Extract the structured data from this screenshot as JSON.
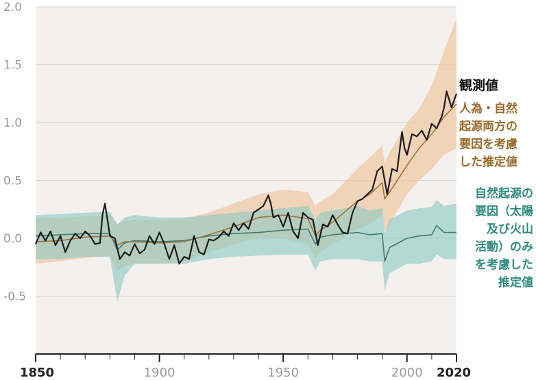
{
  "chart_data": {
    "type": "line",
    "xlim": [
      1850,
      2020
    ],
    "ylim": [
      -1.0,
      2.0
    ],
    "y_ticks": [
      "2.0",
      "1.5",
      "1.0",
      "0.5",
      "0.0",
      "-0.5"
    ],
    "x_ticks": [
      "1850",
      "1900",
      "1950",
      "2000",
      "2020"
    ],
    "grid": true,
    "series": [
      {
        "name": "観測値",
        "color": "#1a1a1a",
        "x": [
          1850,
          1852,
          1854,
          1856,
          1858,
          1860,
          1862,
          1864,
          1866,
          1868,
          1870,
          1872,
          1874,
          1876,
          1877,
          1878,
          1880,
          1882,
          1884,
          1886,
          1888,
          1890,
          1892,
          1894,
          1896,
          1898,
          1900,
          1902,
          1904,
          1906,
          1908,
          1910,
          1912,
          1914,
          1916,
          1918,
          1920,
          1922,
          1924,
          1926,
          1928,
          1930,
          1932,
          1934,
          1936,
          1938,
          1940,
          1942,
          1944,
          1945,
          1946,
          1948,
          1950,
          1952,
          1954,
          1956,
          1958,
          1960,
          1962,
          1964,
          1966,
          1968,
          1970,
          1972,
          1974,
          1976,
          1978,
          1980,
          1982,
          1984,
          1986,
          1988,
          1990,
          1992,
          1994,
          1996,
          1998,
          1999,
          2000,
          2002,
          2004,
          2006,
          2008,
          2010,
          2012,
          2014,
          2015,
          2016,
          2018,
          2020
        ],
        "values": [
          -0.05,
          0.05,
          -0.02,
          0.06,
          -0.06,
          0.02,
          -0.12,
          -0.02,
          0.04,
          0.0,
          0.06,
          0.02,
          -0.05,
          -0.04,
          0.2,
          0.3,
          0.02,
          0.0,
          -0.18,
          -0.12,
          -0.15,
          -0.05,
          -0.13,
          -0.1,
          0.02,
          -0.05,
          0.05,
          -0.05,
          -0.18,
          -0.06,
          -0.22,
          -0.16,
          -0.18,
          0.02,
          -0.12,
          -0.14,
          -0.01,
          -0.02,
          0.01,
          0.06,
          0.02,
          0.13,
          0.07,
          0.13,
          0.08,
          0.22,
          0.25,
          0.28,
          0.37,
          0.3,
          0.18,
          0.2,
          0.1,
          0.22,
          0.06,
          0.0,
          0.22,
          0.18,
          0.16,
          -0.06,
          0.12,
          0.1,
          0.2,
          0.12,
          0.05,
          0.04,
          0.22,
          0.32,
          0.34,
          0.38,
          0.42,
          0.58,
          0.62,
          0.38,
          0.6,
          0.58,
          0.92,
          0.78,
          0.72,
          0.9,
          0.88,
          0.93,
          0.85,
          0.99,
          0.95,
          1.05,
          1.13,
          1.27,
          1.13,
          1.25
        ]
      },
      {
        "name": "人為・自然起源両方の要因を考慮した推定値",
        "color": "#a0742f",
        "x": [
          1850,
          1860,
          1870,
          1880,
          1883,
          1886,
          1890,
          1900,
          1910,
          1920,
          1930,
          1940,
          1950,
          1960,
          1963,
          1965,
          1970,
          1980,
          1985,
          1990,
          1991,
          1993,
          2000,
          2005,
          2010,
          2015,
          2020
        ],
        "values": [
          -0.03,
          -0.02,
          0.01,
          0.02,
          -0.06,
          -0.03,
          -0.03,
          -0.04,
          -0.03,
          0.03,
          0.1,
          0.18,
          0.2,
          0.17,
          0.02,
          0.07,
          0.14,
          0.32,
          0.38,
          0.48,
          0.34,
          0.4,
          0.63,
          0.78,
          0.9,
          1.05,
          1.16
        ],
        "band_lower": [
          -0.22,
          -0.2,
          -0.17,
          -0.15,
          -0.28,
          -0.24,
          -0.22,
          -0.22,
          -0.2,
          -0.12,
          -0.05,
          0.0,
          0.0,
          -0.05,
          -0.18,
          -0.12,
          -0.05,
          0.08,
          0.12,
          0.2,
          0.06,
          0.12,
          0.38,
          0.5,
          0.6,
          0.72,
          0.78
        ],
        "band_upper": [
          0.18,
          0.17,
          0.19,
          0.2,
          0.12,
          0.15,
          0.16,
          0.16,
          0.17,
          0.22,
          0.3,
          0.38,
          0.42,
          0.4,
          0.28,
          0.32,
          0.38,
          0.6,
          0.7,
          0.8,
          0.66,
          0.74,
          1.0,
          1.12,
          1.32,
          1.62,
          1.9
        ]
      },
      {
        "name": "自然起源の要因（太陽及び火山活動）のみを考慮した推定値",
        "color": "#3f7d70",
        "x": [
          1850,
          1860,
          1870,
          1880,
          1883,
          1886,
          1890,
          1900,
          1910,
          1920,
          1930,
          1940,
          1950,
          1960,
          1963,
          1965,
          1970,
          1980,
          1985,
          1990,
          1991,
          1993,
          2000,
          2005,
          2010,
          2012,
          2015,
          2020
        ],
        "values": [
          0.02,
          0.03,
          0.04,
          0.04,
          -0.1,
          -0.04,
          -0.02,
          -0.03,
          -0.02,
          0.02,
          0.04,
          0.05,
          0.07,
          0.08,
          -0.05,
          0.01,
          0.03,
          0.05,
          0.03,
          0.04,
          -0.2,
          -0.08,
          0.0,
          0.02,
          0.03,
          0.11,
          0.05,
          0.05
        ],
        "band_lower": [
          -0.18,
          -0.18,
          -0.16,
          -0.16,
          -0.55,
          -0.32,
          -0.22,
          -0.22,
          -0.22,
          -0.18,
          -0.16,
          -0.15,
          -0.14,
          -0.14,
          -0.28,
          -0.2,
          -0.18,
          -0.18,
          -0.2,
          -0.2,
          -0.45,
          -0.3,
          -0.22,
          -0.22,
          -0.2,
          -0.14,
          -0.18,
          -0.18
        ],
        "band_upper": [
          0.2,
          0.21,
          0.22,
          0.23,
          0.12,
          0.18,
          0.2,
          0.18,
          0.18,
          0.2,
          0.22,
          0.24,
          0.26,
          0.28,
          0.16,
          0.22,
          0.24,
          0.28,
          0.24,
          0.26,
          0.04,
          0.16,
          0.24,
          0.26,
          0.27,
          0.33,
          0.28,
          0.3
        ]
      }
    ]
  },
  "legend": {
    "observed": [
      "観測値"
    ],
    "both": [
      "人為・自然",
      "起源両方の",
      "要因を考慮",
      "した推定値"
    ],
    "natural": [
      "自然起源の",
      "要因（太陽",
      "及び火山",
      "活動）のみ",
      "を考慮した",
      "推定値"
    ]
  },
  "colors": {
    "background": "#f4f0ee",
    "both_band": "#f0c7a3",
    "natural_band": "#8cc9c3",
    "observed_text": "#111111",
    "both_text": "#9a6a2a",
    "natural_text": "#2f8a80"
  }
}
